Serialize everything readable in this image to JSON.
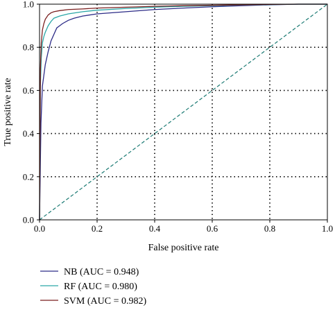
{
  "chart_data": {
    "type": "line",
    "title": "",
    "xlabel": "False positive rate",
    "ylabel": "True positive rate",
    "xlim": [
      0,
      1
    ],
    "ylim": [
      0,
      1
    ],
    "xticks": [
      0,
      0.2,
      0.4,
      0.6,
      0.8,
      1
    ],
    "yticks": [
      0,
      0.2,
      0.4,
      0.6,
      0.8,
      1
    ],
    "xtick_labels": [
      "0.0",
      "0.2",
      "0.4",
      "0.6",
      "0.8",
      "1.0"
    ],
    "ytick_labels": [
      "0.0",
      "0.2",
      "0.4",
      "0.6",
      "0.8",
      "1.0"
    ],
    "grid": "dotted",
    "legend_position": "below",
    "diagonal": {
      "x": [
        0,
        1
      ],
      "y": [
        0,
        1
      ],
      "style": "dashed",
      "color": "#1a7a73"
    },
    "series": [
      {
        "name": "NB (AUC = 0.948)",
        "color": "#2b2a86",
        "x": [
          0,
          0.005,
          0.01,
          0.02,
          0.03,
          0.04,
          0.05,
          0.06,
          0.07,
          0.08,
          0.1,
          0.12,
          0.15,
          0.2,
          0.3,
          0.4,
          0.5,
          0.6,
          0.7,
          0.8,
          0.9,
          1.0
        ],
        "y": [
          0,
          0.45,
          0.62,
          0.72,
          0.78,
          0.83,
          0.86,
          0.89,
          0.9,
          0.91,
          0.925,
          0.935,
          0.945,
          0.955,
          0.965,
          0.975,
          0.982,
          0.988,
          0.993,
          0.997,
          1.0,
          1.0
        ]
      },
      {
        "name": "RF (AUC = 0.980)",
        "color": "#2aa6a6",
        "x": [
          0,
          0.003,
          0.006,
          0.01,
          0.015,
          0.02,
          0.03,
          0.04,
          0.05,
          0.07,
          0.1,
          0.15,
          0.2,
          0.3,
          0.4,
          0.5,
          0.6,
          0.7,
          0.8,
          0.9,
          1.0
        ],
        "y": [
          0,
          0.62,
          0.75,
          0.82,
          0.85,
          0.87,
          0.9,
          0.92,
          0.935,
          0.945,
          0.955,
          0.965,
          0.972,
          0.98,
          0.986,
          0.99,
          0.993,
          0.996,
          0.998,
          1.0,
          1.0
        ]
      },
      {
        "name": "SVM (AUC = 0.982)",
        "color": "#7a1f1f",
        "x": [
          0,
          0.003,
          0.006,
          0.01,
          0.015,
          0.02,
          0.03,
          0.04,
          0.05,
          0.07,
          0.1,
          0.15,
          0.2,
          0.3,
          0.4,
          0.5,
          0.6,
          0.7,
          0.8,
          0.9,
          1.0
        ],
        "y": [
          0,
          0.7,
          0.82,
          0.88,
          0.91,
          0.93,
          0.95,
          0.96,
          0.965,
          0.97,
          0.975,
          0.978,
          0.982,
          0.986,
          0.99,
          0.993,
          0.995,
          0.997,
          0.999,
          1.0,
          1.0
        ]
      }
    ]
  }
}
